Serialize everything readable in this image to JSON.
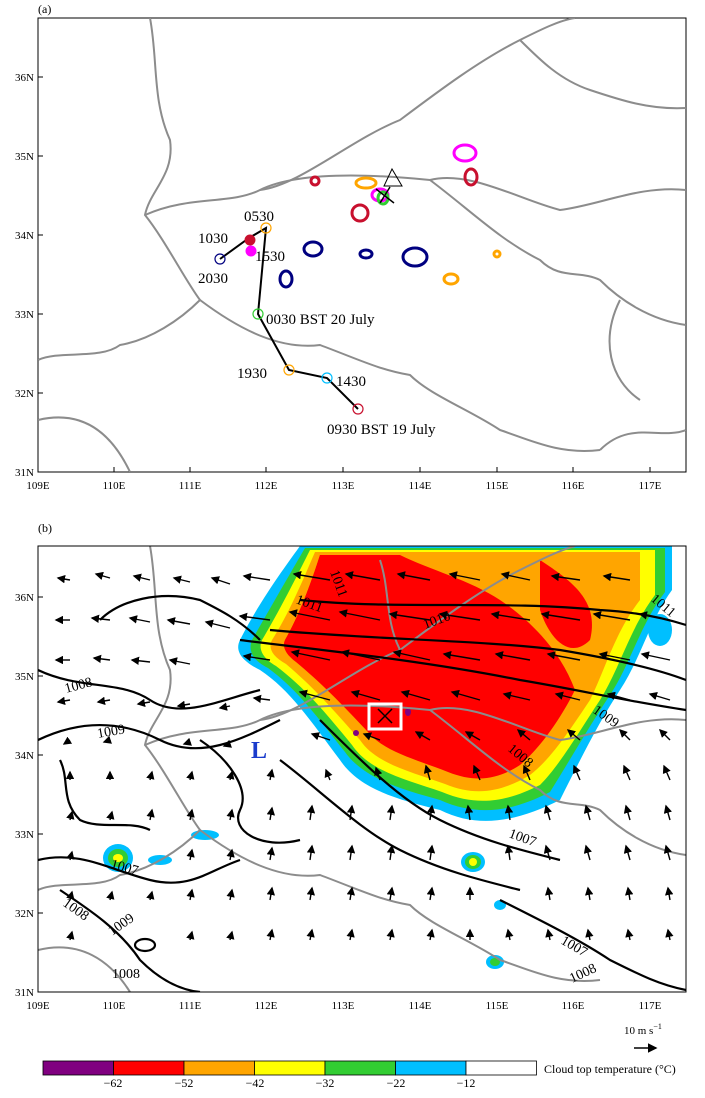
{
  "panel_a": {
    "label": "(a)",
    "lat_labels": [
      "31N",
      "32N",
      "33N",
      "34N",
      "35N",
      "36N"
    ],
    "lon_labels": [
      "109E",
      "110E",
      "111E",
      "112E",
      "113E",
      "114E",
      "115E",
      "116E",
      "117E"
    ],
    "track_labels": [
      "0530",
      "1030",
      "1530",
      "2030",
      "0030 BST 20 July",
      "1930",
      "1430",
      "0930 BST 19 July"
    ]
  },
  "panel_b": {
    "label": "(b)",
    "lat_labels": [
      "31N",
      "32N",
      "33N",
      "34N",
      "35N",
      "36N"
    ],
    "lon_labels": [
      "109E",
      "110E",
      "111E",
      "112E",
      "113E",
      "114E",
      "115E",
      "116E",
      "117E"
    ],
    "low_label": "L",
    "contour_labels": [
      "1011",
      "1011",
      "1010",
      "1011",
      "1008",
      "1009",
      "1009",
      "1008",
      "1007",
      "1007",
      "1008",
      "1009",
      "1008",
      "1007",
      "1008"
    ],
    "ref_vector_label": "10 m s",
    "ref_vector_sup": "−1"
  },
  "colorbar": {
    "title": "Cloud top temperature (°C)",
    "tick_labels": [
      "−62",
      "−52",
      "−42",
      "−32",
      "−22",
      "−12"
    ],
    "colors": [
      "#800080",
      "#ff0000",
      "#ffa500",
      "#ffff00",
      "#32cd32",
      "#00bfff",
      "#ffffff"
    ]
  }
}
